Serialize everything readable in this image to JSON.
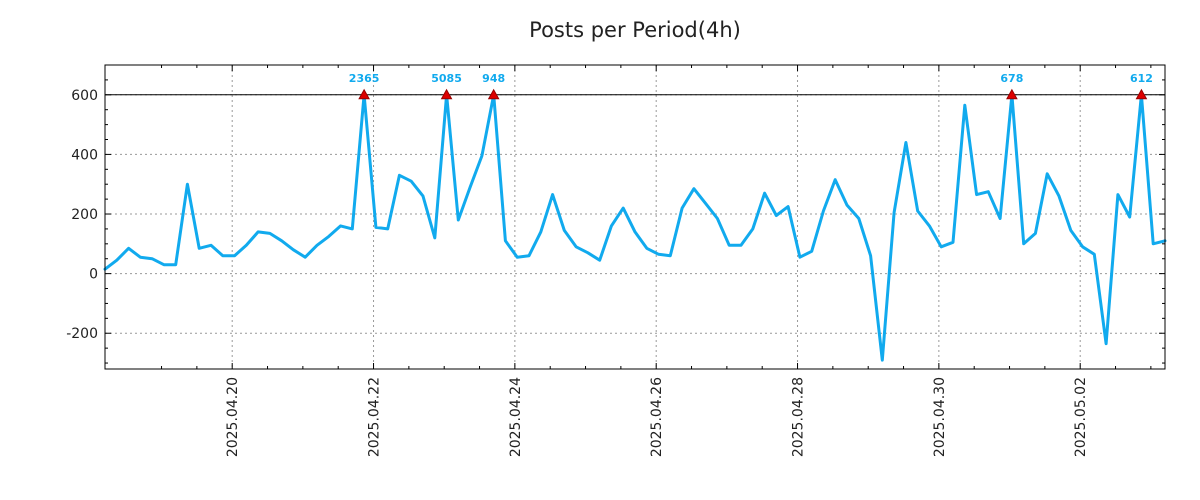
{
  "chart_data": {
    "type": "line",
    "title": "Posts per Period(4h)",
    "xlabel": "",
    "ylabel": "",
    "ylim": [
      -320,
      700
    ],
    "grid": true,
    "clip_value": 600,
    "line_color": "#11aaee",
    "marker_color": "#dd0000",
    "x_start": "2025.04.18 08:00",
    "x_step_hours": 4,
    "x_ticks": [
      {
        "label": "2025.04.20",
        "index": 10.8
      },
      {
        "label": "2025.04.22",
        "index": 22.8
      },
      {
        "label": "2025.04.24",
        "index": 34.8
      },
      {
        "label": "2025.04.26",
        "index": 46.8
      },
      {
        "label": "2025.04.28",
        "index": 58.8
      },
      {
        "label": "2025.04.30",
        "index": 70.8
      },
      {
        "label": "2025.05.02",
        "index": 82.8
      }
    ],
    "y_ticks": [
      {
        "label": "600",
        "value": 600
      },
      {
        "label": "400",
        "value": 400
      },
      {
        "label": "200",
        "value": 200
      },
      {
        "label": "0",
        "value": 0
      },
      {
        "label": "-200",
        "value": -200
      }
    ],
    "values": [
      15,
      45,
      85,
      55,
      50,
      30,
      30,
      300,
      85,
      95,
      60,
      60,
      95,
      140,
      135,
      110,
      80,
      55,
      95,
      125,
      160,
      150,
      600,
      155,
      150,
      330,
      310,
      260,
      120,
      600,
      180,
      290,
      395,
      600,
      110,
      55,
      60,
      140,
      265,
      145,
      90,
      70,
      45,
      160,
      220,
      140,
      85,
      65,
      60,
      220,
      285,
      235,
      185,
      95,
      95,
      150,
      270,
      195,
      225,
      55,
      75,
      210,
      315,
      230,
      185,
      60,
      -290,
      205,
      440,
      210,
      160,
      90,
      105,
      565,
      265,
      275,
      185,
      600,
      100,
      135,
      335,
      260,
      145,
      90,
      65,
      -235,
      265,
      190,
      600,
      100,
      110
    ],
    "peaks": [
      {
        "index": 22,
        "label": "2365"
      },
      {
        "index": 29,
        "label": "5085"
      },
      {
        "index": 33,
        "label": "948"
      },
      {
        "index": 77,
        "label": "678"
      },
      {
        "index": 88,
        "label": "612"
      }
    ]
  }
}
